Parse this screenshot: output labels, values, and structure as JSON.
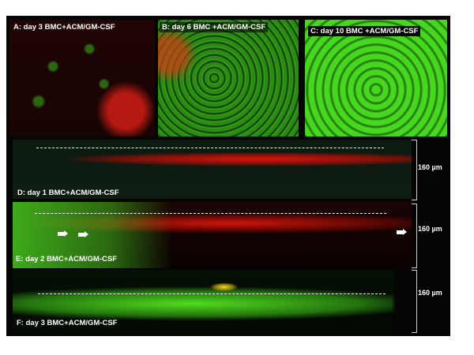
{
  "panels": {
    "a": {
      "label": "A: day 3  BMC+ACM/GM-CSF"
    },
    "b": {
      "label": "B: day 6 BMC +ACM/GM-CSF"
    },
    "c": {
      "label": "C: day 10 BMC +ACM/GM-CSF"
    },
    "d": {
      "label": "D: day 1 BMC+ACM/GM-CSF",
      "scale": "160 µm"
    },
    "e": {
      "label": "E: day 2 BMC+ACM/GM-CSF",
      "scale": "160 µm"
    },
    "f": {
      "label": "F: day 3 BMC+ACM/GM-CSF",
      "scale": "160 µm"
    }
  },
  "colors": {
    "green": "#3fe51a",
    "red": "#e8140c",
    "background": "#050505"
  }
}
